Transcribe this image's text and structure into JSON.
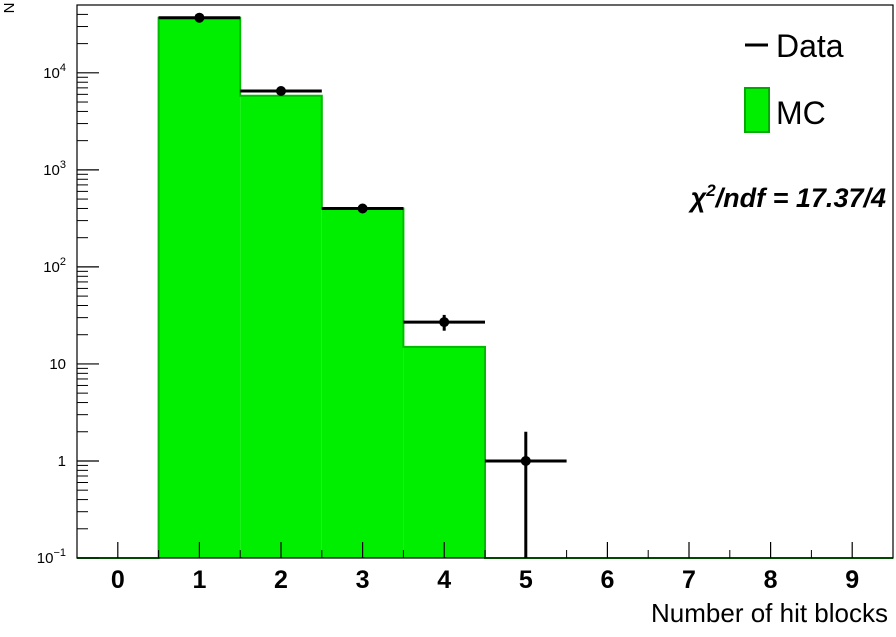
{
  "chart_data": {
    "type": "bar",
    "title": "",
    "xlabel": "Number of hit blocks",
    "ylabel": "N",
    "yscale": "log",
    "xlim": [
      -0.5,
      9.5
    ],
    "ylim": [
      0.1,
      50000
    ],
    "x_ticks": [
      "0",
      "1",
      "2",
      "3",
      "4",
      "5",
      "6",
      "7",
      "8",
      "9"
    ],
    "y_ticks": [
      {
        "value": 0.1,
        "label": "10",
        "sup": "−1"
      },
      {
        "value": 1,
        "label": "1",
        "sup": ""
      },
      {
        "value": 10,
        "label": "10",
        "sup": ""
      },
      {
        "value": 100,
        "label": "10",
        "sup": "2"
      },
      {
        "value": 1000,
        "label": "10",
        "sup": "3"
      },
      {
        "value": 10000,
        "label": "10",
        "sup": "4"
      }
    ],
    "grid": false,
    "legend_position": "top-right",
    "series": [
      {
        "name": "MC",
        "kind": "histogram",
        "color": "#00ee00",
        "x": [
          0,
          1,
          2,
          3,
          4,
          5,
          6,
          7,
          8,
          9
        ],
        "values": [
          0,
          37000,
          5800,
          400,
          15,
          0,
          0,
          0,
          0,
          0
        ]
      },
      {
        "name": "Data",
        "kind": "points",
        "color": "#000000",
        "x": [
          1,
          2,
          3,
          4,
          5
        ],
        "values": [
          37000,
          6500,
          400,
          27,
          1
        ],
        "err_low": [
          190,
          80,
          20,
          5,
          1
        ],
        "err_high": [
          190,
          80,
          20,
          5,
          1
        ]
      }
    ],
    "annotation": {
      "chi": "χ",
      "sup": "2",
      "rest": "/ndf = 17.37/4"
    }
  }
}
